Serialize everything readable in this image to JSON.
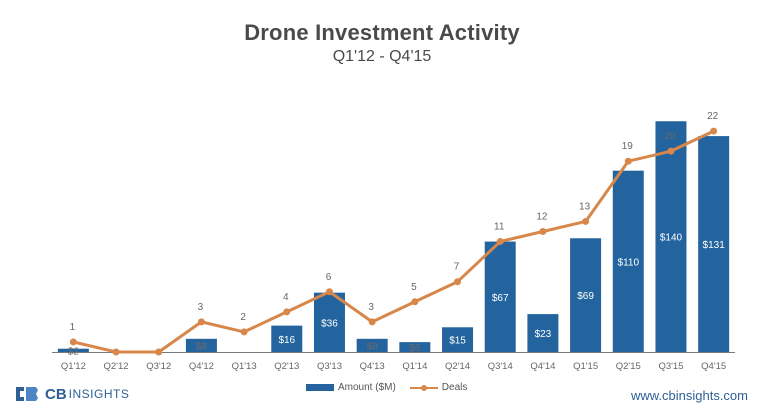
{
  "header": {
    "title": "Drone Investment Activity",
    "subtitle": "Q1'12 - Q4'15"
  },
  "chart_data": {
    "type": "bar",
    "title": "Drone Investment Activity",
    "subtitle": "Q1'12 - Q4'15",
    "categories": [
      "Q1'12",
      "Q2'12",
      "Q3'12",
      "Q4'12",
      "Q1'13",
      "Q2'13",
      "Q3'13",
      "Q4'13",
      "Q1'14",
      "Q2'14",
      "Q3'14",
      "Q4'14",
      "Q1'15",
      "Q2'15",
      "Q3'15",
      "Q4'15"
    ],
    "series": [
      {
        "name": "Amount ($M)",
        "type": "bar",
        "color": "#23649e",
        "values": [
          2,
          0,
          0,
          8,
          0,
          16,
          36,
          8,
          6,
          15,
          67,
          23,
          69,
          110,
          140,
          131
        ],
        "labels": [
          "$2",
          "",
          "",
          "$8",
          "",
          "$16",
          "$36",
          "$8",
          "$6",
          "$15",
          "$67",
          "$23",
          "$69",
          "$110",
          "$140",
          "$131"
        ]
      },
      {
        "name": "Deals",
        "type": "line",
        "color": "#d8874a",
        "values": [
          1,
          0,
          0,
          3,
          2,
          4,
          6,
          3,
          5,
          7,
          11,
          12,
          13,
          19,
          20,
          22
        ],
        "labels": [
          "1",
          "",
          "",
          "3",
          "2",
          "4",
          "6",
          "3",
          "5",
          "7",
          "11",
          "12",
          "13",
          "19",
          "20",
          "22"
        ]
      }
    ],
    "bar_axis_range": [
      0,
      145
    ],
    "line_axis_range": [
      0,
      24
    ],
    "gridlines": false,
    "legend_position": "bottom-center"
  },
  "legend": {
    "bar_label": "Amount ($M)",
    "line_label": "Deals"
  },
  "footer": {
    "logo_cb": "CB",
    "logo_insights": "INSIGHTS",
    "website": "www.cbinsights.com"
  },
  "colors": {
    "bar": "#23649e",
    "line": "#d8874a",
    "text": "#555555",
    "title": "#4a4a4a",
    "brand": "#2f5f95"
  }
}
